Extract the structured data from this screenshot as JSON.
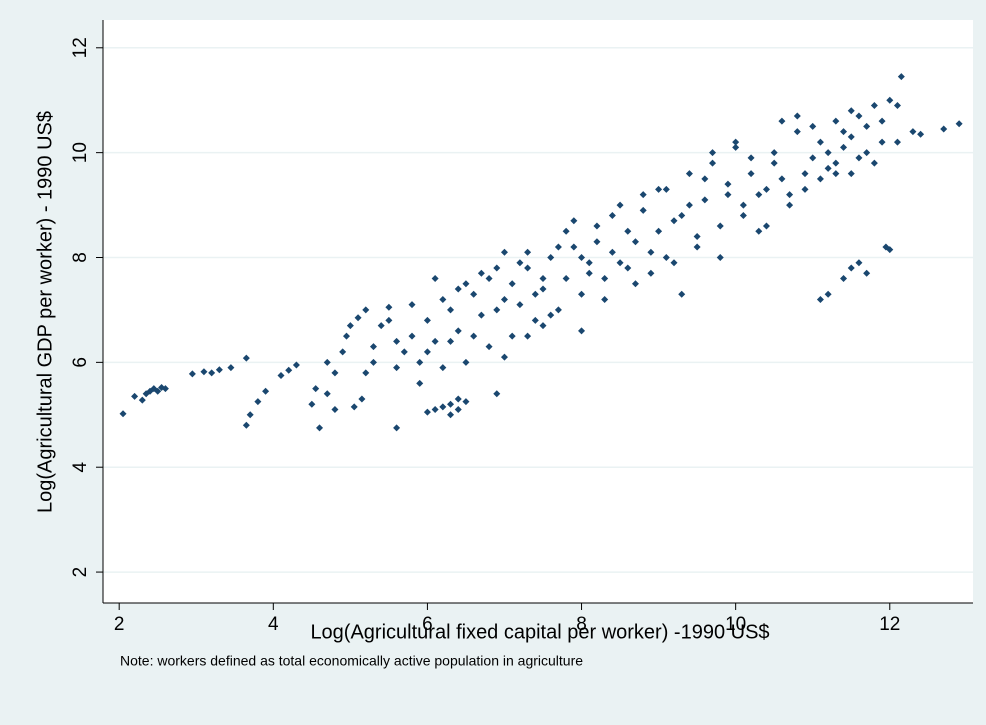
{
  "chart_data": {
    "type": "scatter",
    "x_label": "Log(Agricultural fixed capital per worker) -1990 US$",
    "y_label": "Log(Agricultural GDP per worker) - 1990 US$",
    "note": "Note: workers defined as total economically active population in agriculture",
    "color": "#1a476f",
    "grid": true,
    "xlim": [
      1.79,
      13.08
    ],
    "ylim": [
      1.41,
      12.53
    ],
    "xticks": [
      2,
      4,
      6,
      8,
      10,
      12
    ],
    "yticks": [
      2,
      4,
      6,
      8,
      10,
      12
    ],
    "x": [
      2.05,
      2.2,
      2.3,
      2.35,
      2.4,
      2.45,
      2.5,
      2.55,
      2.6,
      2.95,
      3.1,
      3.2,
      3.3,
      3.45,
      3.65,
      3.65,
      3.7,
      3.8,
      3.9,
      4.1,
      4.2,
      4.3,
      4.5,
      4.55,
      4.6,
      4.7,
      4.8,
      4.9,
      4.95,
      5.0,
      5.1,
      5.2,
      5.05,
      5.15,
      5.3,
      5.4,
      5.5,
      5.6,
      5.6,
      5.7,
      5.8,
      5.9,
      6.0,
      6.0,
      6.1,
      6.2,
      6.3,
      6.4,
      6.5,
      6.3,
      6.4,
      6.1,
      6.2,
      6.3,
      6.4,
      6.5,
      6.6,
      6.7,
      6.8,
      6.9,
      7.0,
      6.9,
      7.0,
      7.1,
      7.2,
      7.3,
      7.4,
      7.5,
      7.3,
      7.5,
      7.6,
      7.7,
      7.8,
      7.9,
      8.0,
      8.1,
      8.2,
      8.0,
      8.3,
      8.4,
      8.5,
      8.6,
      8.7,
      8.8,
      8.9,
      9.0,
      9.1,
      9.2,
      9.3,
      9.4,
      9.5,
      9.6,
      9.7,
      9.8,
      9.9,
      10.0,
      10.1,
      10.2,
      10.3,
      10.4,
      10.5,
      10.6,
      10.7,
      10.8,
      10.9,
      11.0,
      11.1,
      11.2,
      11.3,
      11.4,
      11.5,
      11.6,
      11.7,
      11.8,
      11.9,
      12.0,
      12.1,
      12.15,
      12.3,
      12.4,
      12.7,
      12.9,
      11.1,
      11.2,
      11.4,
      11.5,
      11.6,
      11.7,
      11.95,
      12.0,
      10.8,
      11.0,
      11.3,
      11.5,
      11.8,
      12.1,
      5.5,
      5.8,
      6.1,
      6.4,
      6.7,
      7.0,
      7.3,
      7.6,
      7.9,
      8.2,
      8.5,
      8.8,
      9.1,
      9.4,
      9.7,
      10.0,
      6.0,
      6.3,
      6.6,
      6.9,
      7.2,
      7.5,
      7.8,
      8.1,
      8.4,
      8.7,
      9.0,
      9.3,
      9.6,
      9.9,
      10.2,
      10.5,
      5.9,
      6.2,
      6.5,
      6.8,
      7.1,
      7.4,
      7.7,
      8.0,
      8.3,
      8.6,
      8.9,
      9.2,
      9.5,
      9.8,
      10.1,
      10.4,
      10.7,
      10.9,
      11.1,
      11.3,
      11.5,
      11.7,
      11.9,
      11.2,
      11.4,
      11.6,
      10.6,
      10.3,
      5.2,
      4.8,
      5.6,
      5.3,
      4.7
    ],
    "y": [
      5.02,
      5.35,
      5.28,
      5.4,
      5.45,
      5.5,
      5.45,
      5.52,
      5.5,
      5.78,
      5.82,
      5.8,
      5.86,
      5.9,
      6.08,
      4.8,
      5.0,
      5.25,
      5.45,
      5.75,
      5.85,
      5.95,
      5.2,
      5.5,
      4.75,
      5.4,
      5.8,
      6.2,
      6.5,
      6.7,
      6.85,
      7.0,
      5.15,
      5.3,
      6.0,
      6.7,
      6.8,
      4.75,
      5.9,
      6.2,
      6.5,
      6.0,
      6.8,
      5.05,
      5.1,
      5.15,
      5.2,
      5.3,
      5.25,
      5.0,
      5.1,
      6.4,
      7.2,
      7.0,
      6.6,
      7.5,
      7.3,
      6.9,
      7.6,
      7.8,
      7.2,
      5.4,
      6.1,
      7.5,
      7.9,
      8.1,
      7.3,
      7.6,
      6.5,
      6.7,
      6.9,
      8.2,
      8.5,
      8.7,
      8.0,
      7.7,
      8.3,
      6.6,
      7.2,
      8.8,
      7.9,
      8.5,
      7.5,
      8.9,
      8.1,
      9.3,
      8.0,
      8.7,
      7.3,
      9.0,
      8.4,
      9.5,
      9.8,
      8.0,
      9.2,
      10.2,
      9.0,
      9.6,
      8.5,
      9.3,
      9.8,
      10.6,
      9.2,
      10.4,
      9.6,
      9.9,
      10.2,
      9.7,
      10.6,
      10.1,
      10.8,
      9.9,
      10.5,
      10.9,
      10.2,
      11.0,
      10.9,
      11.45,
      10.4,
      10.35,
      10.45,
      10.55,
      7.2,
      7.3,
      7.6,
      7.8,
      7.9,
      7.7,
      8.2,
      8.15,
      10.7,
      10.5,
      9.6,
      9.6,
      9.8,
      10.2,
      7.05,
      7.1,
      7.6,
      7.4,
      7.7,
      8.1,
      7.8,
      8.0,
      8.2,
      8.6,
      9.0,
      9.2,
      9.3,
      9.6,
      10.0,
      10.1,
      6.2,
      6.4,
      6.5,
      7.0,
      7.1,
      7.4,
      7.6,
      7.9,
      8.1,
      8.3,
      8.5,
      8.8,
      9.1,
      9.4,
      9.9,
      10.0,
      5.6,
      5.9,
      6.0,
      6.3,
      6.5,
      6.8,
      7.0,
      7.3,
      7.6,
      7.8,
      7.7,
      7.9,
      8.2,
      8.6,
      8.8,
      8.6,
      9.0,
      9.3,
      9.5,
      9.8,
      10.3,
      10.0,
      10.6,
      10.0,
      10.4,
      10.7,
      9.5,
      9.2,
      5.8,
      5.1,
      6.4,
      6.3,
      6.0
    ]
  }
}
